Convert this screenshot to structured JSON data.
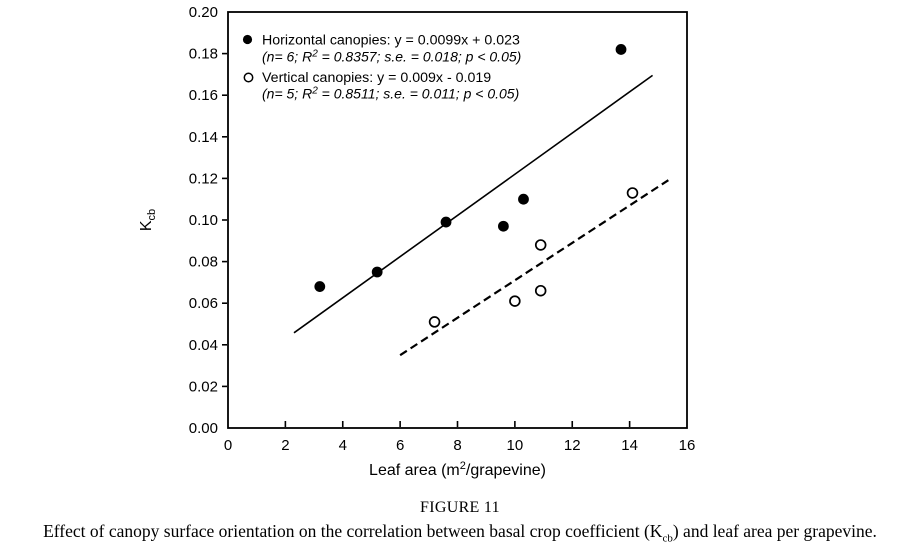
{
  "page": {
    "background": "#ffffff"
  },
  "figure": {
    "label": "FIGURE 11",
    "caption_pre": "Effect of canopy surface orientation on the correlation between basal crop coefficient (K",
    "caption_sub": "cb",
    "caption_post": ") and leaf area per grapevine."
  },
  "chart_data": {
    "type": "scatter",
    "title": "",
    "xlabel": "Leaf area (m2/grapevine)",
    "xlabel_parts": {
      "pre": "Leaf area (m",
      "sup": "2",
      "post": "/grapevine)"
    },
    "ylabel": "Kcb",
    "ylabel_parts": {
      "main": "K",
      "sub": "cb"
    },
    "x_axis": {
      "min": 0,
      "max": 16,
      "step": 2,
      "tick_labels": [
        "0",
        "2",
        "4",
        "6",
        "8",
        "10",
        "12",
        "14",
        "16"
      ]
    },
    "y_axis": {
      "min": 0,
      "max": 0.2,
      "step": 0.02,
      "tick_labels": [
        "0.00",
        "0.02",
        "0.04",
        "0.06",
        "0.08",
        "0.10",
        "0.12",
        "0.14",
        "0.16",
        "0.18",
        "0.20"
      ]
    },
    "grid": false,
    "legend_position": "top-left-inside",
    "series": [
      {
        "name": "Horizontal canopies",
        "marker": "filled-circle",
        "trend_style": "solid",
        "points": [
          [
            3.2,
            0.068
          ],
          [
            5.2,
            0.075
          ],
          [
            7.6,
            0.099
          ],
          [
            9.6,
            0.097
          ],
          [
            10.3,
            0.11
          ],
          [
            13.7,
            0.182
          ]
        ],
        "trendline": {
          "slope": 0.0099,
          "intercept": 0.023,
          "x_start": 2.3,
          "x_end": 14.8
        },
        "legend_line1": "Horizontal canopies: y = 0.0099x + 0.023",
        "legend_stats_pre": "(n= 6; R",
        "legend_stats_sup": "2",
        "legend_stats_post": " = 0.8357; s.e. = 0.018; p < 0.05)"
      },
      {
        "name": "Vertical canopies",
        "marker": "open-circle",
        "trend_style": "dashed",
        "points": [
          [
            7.2,
            0.051
          ],
          [
            10.0,
            0.061
          ],
          [
            10.9,
            0.066
          ],
          [
            10.9,
            0.088
          ],
          [
            14.1,
            0.113
          ]
        ],
        "trendline": {
          "slope": 0.009,
          "intercept": -0.019,
          "x_start": 6.0,
          "x_end": 15.35
        },
        "legend_line1": "Vertical canopies: y = 0.009x - 0.019",
        "legend_stats_pre": "(n= 5; R",
        "legend_stats_sup": "2",
        "legend_stats_post": " = 0.8511; s.e. = 0.011; p < 0.05)"
      }
    ],
    "colors": {
      "foreground": "#000000",
      "background": "#ffffff"
    }
  }
}
